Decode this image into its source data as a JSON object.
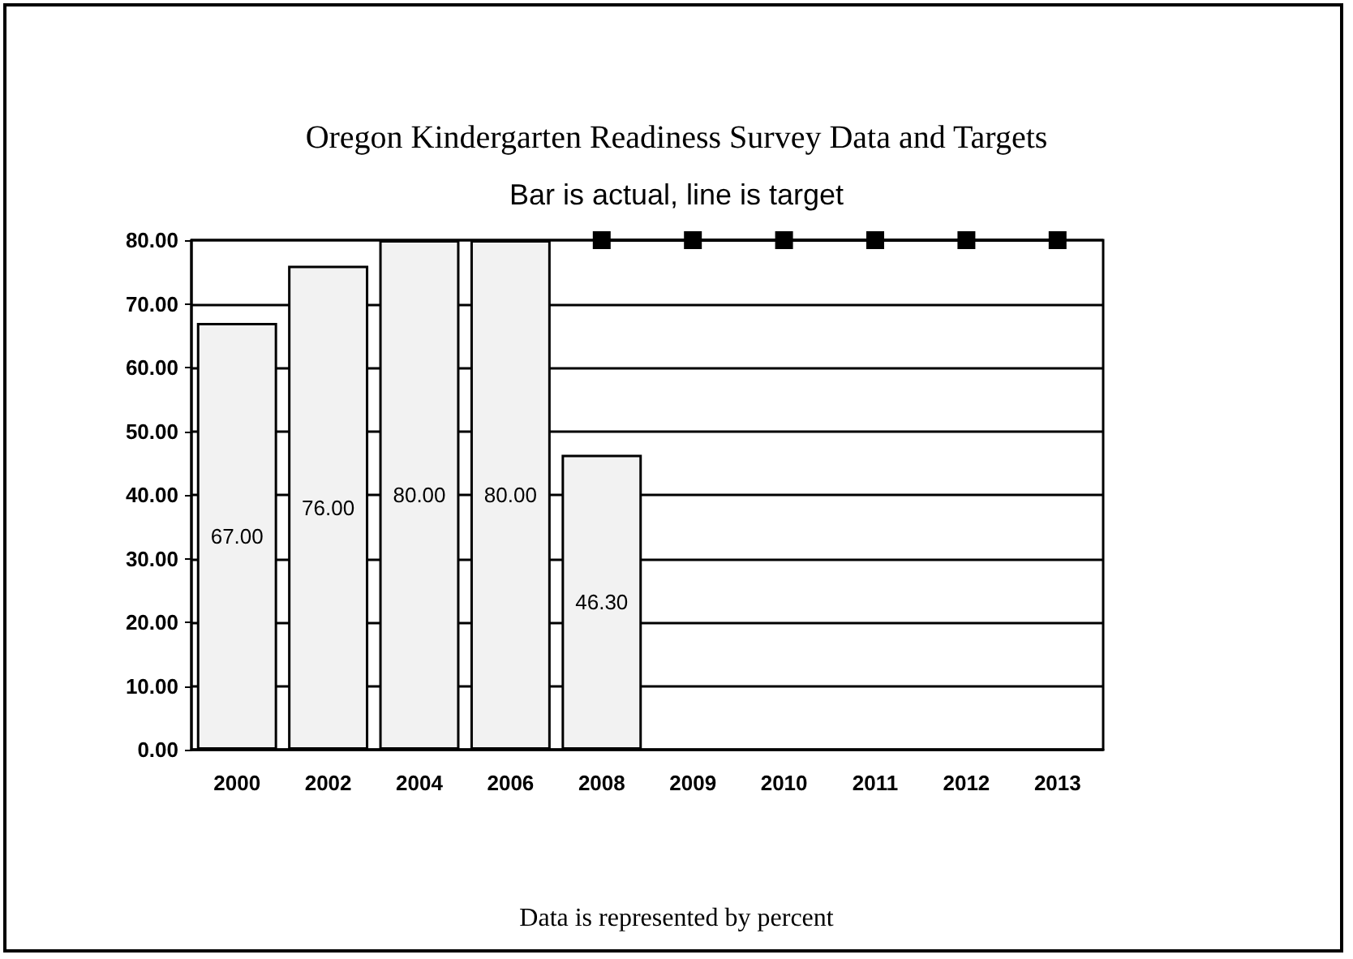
{
  "chart_data": {
    "type": "bar",
    "title": "Oregon Kindergarten Readiness Survey Data and Targets",
    "subtitle": "Bar is actual, line is target",
    "annotations": [
      "Data is represented by percent"
    ],
    "categories": [
      "2000",
      "2002",
      "2004",
      "2006",
      "2008",
      "2009",
      "2010",
      "2011",
      "2012",
      "2013"
    ],
    "series": [
      {
        "color": "#f2f2f2",
        "values": [
          67,
          76,
          80,
          80,
          46.3,
          null,
          null,
          null,
          null,
          null
        ],
        "value_labels": [
          "67.00",
          "76.00",
          "80.00",
          "80.00",
          "46.30",
          null,
          null,
          null,
          null,
          null
        ]
      },
      {
        "type": "line",
        "color": "#000000",
        "marker": "square",
        "values": [
          null,
          null,
          null,
          null,
          80,
          80,
          80,
          80,
          80,
          80
        ]
      }
    ],
    "ylim": [
      0,
      80
    ],
    "yticks": [
      {
        "value": 0,
        "label": "0.00"
      },
      {
        "value": 10,
        "label": "10.00"
      },
      {
        "value": 20,
        "label": "20.00"
      },
      {
        "value": 30,
        "label": "30.00"
      },
      {
        "value": 40,
        "label": "40.00"
      },
      {
        "value": 50,
        "label": "50.00"
      },
      {
        "value": 60,
        "label": "60.00"
      },
      {
        "value": 70,
        "label": "70.00"
      },
      {
        "value": 80,
        "label": "80.00"
      }
    ],
    "grid": "y"
  }
}
